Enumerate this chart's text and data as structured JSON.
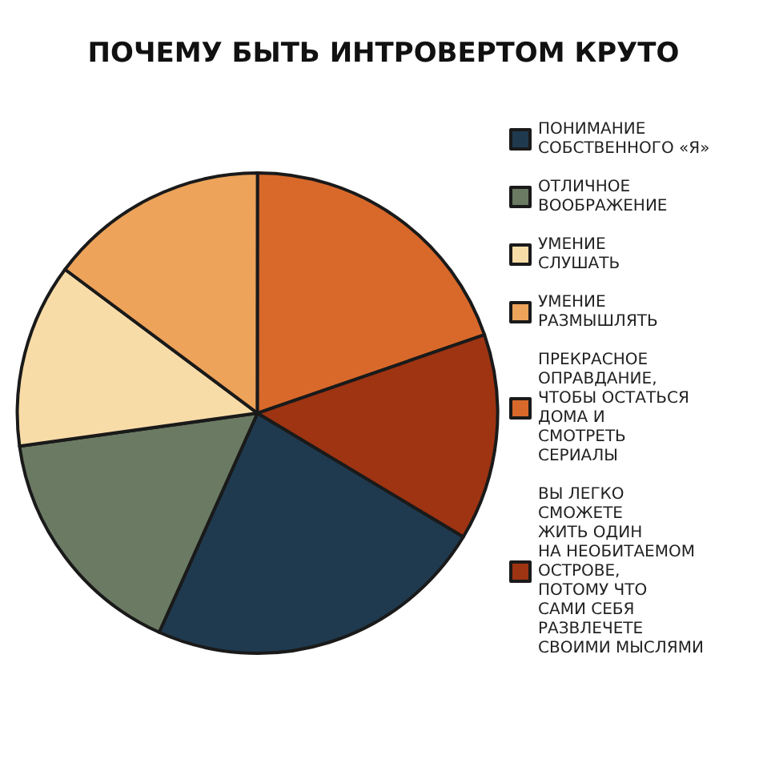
{
  "chart_data": {
    "type": "pie",
    "title": "ПОЧЕМУ БЫТЬ ИНТРОВЕРТОМ КРУТО",
    "categories": [
      "ПОНИМАНИЕ\nСОБСТВЕННОГО «Я»",
      "ОТЛИЧНОЕ\nВООБРАЖЕНИЕ",
      "УМЕНИЕ\nСЛУШАТЬ",
      "УМЕНИЕ\nРАЗМЫШЛЯТЬ",
      "ПРЕКРАСНОЕ\nОПРАВДАНИЕ,\nЧТОБЫ ОСТАТЬСЯ\nДОМА И\nСМОТРЕТЬ\nСЕРИАЛЫ",
      "ВЫ ЛЕГКО\nСМОЖЕТЕ\nЖИТЬ ОДИН\nНА НЕОБИТАЕМОМ\nОСТРОВЕ,\nПОТОМУ ЧТО\nСАМИ СЕБЯ\nРАЗВЛЕЧЕТЕ\nСВОИМИ МЫСЛЯМИ"
    ],
    "values": [
      23.1,
      16.1,
      12.4,
      14.8,
      19.7,
      13.9
    ],
    "colors": [
      "#1f3a4f",
      "#6b7a63",
      "#f8dca8",
      "#eda35a",
      "#d9692a",
      "#9e3412"
    ],
    "legend": "right"
  }
}
